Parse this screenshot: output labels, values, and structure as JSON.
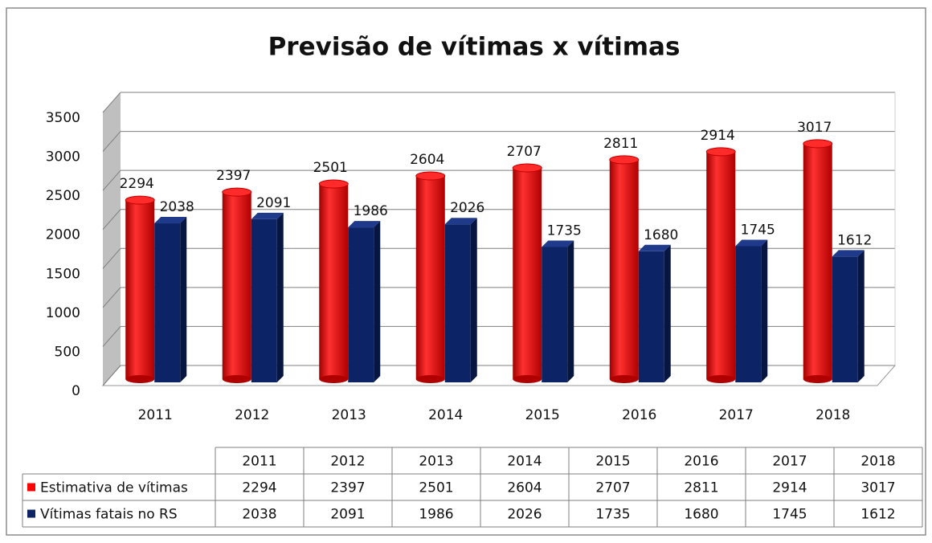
{
  "chart_data": {
    "type": "bar3d",
    "title": "Previsão de vítimas x vítimas",
    "categories": [
      "2011",
      "2012",
      "2013",
      "2014",
      "2015",
      "2016",
      "2017",
      "2018"
    ],
    "series": [
      {
        "name": "Estimativa de vítimas",
        "color": "#ff0000",
        "values": [
          2294,
          2397,
          2501,
          2604,
          2707,
          2811,
          2914,
          3017
        ]
      },
      {
        "name": "Vítimas fatais no RS",
        "color": "#0c2466",
        "values": [
          2038,
          2091,
          1986,
          2026,
          1735,
          1680,
          1745,
          1612
        ]
      }
    ],
    "ylim": [
      0,
      3500
    ],
    "yticks": [
      0,
      500,
      1000,
      1500,
      2000,
      2500,
      3000,
      3500
    ],
    "grid": true,
    "data_table": true
  }
}
